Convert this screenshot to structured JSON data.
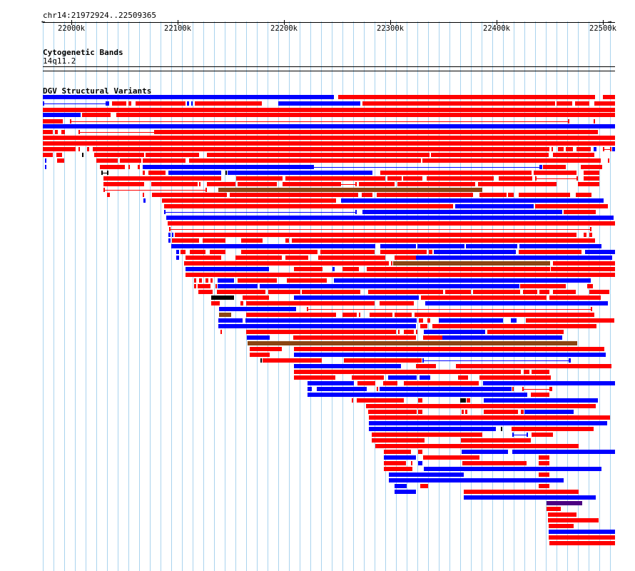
{
  "location": "chr14:21972924..22509365",
  "ruler": {
    "ticks": [
      "22000k",
      "22100k",
      "22200k",
      "22300k",
      "22400k",
      "22500k"
    ],
    "left_arrow": "←",
    "right_arrow": "→"
  },
  "tracks": {
    "cytoband": {
      "title": "Cytogenetic Bands",
      "band_label": "14q11.2"
    },
    "dgv": {
      "title": "DGV Structural Variants"
    }
  },
  "colors": {
    "loss": "#ff0000",
    "gain": "#0000ff",
    "inversion": "#8b4513",
    "complex": "#000000",
    "other": "#4b0082",
    "grid": "#a9d3ee"
  }
}
